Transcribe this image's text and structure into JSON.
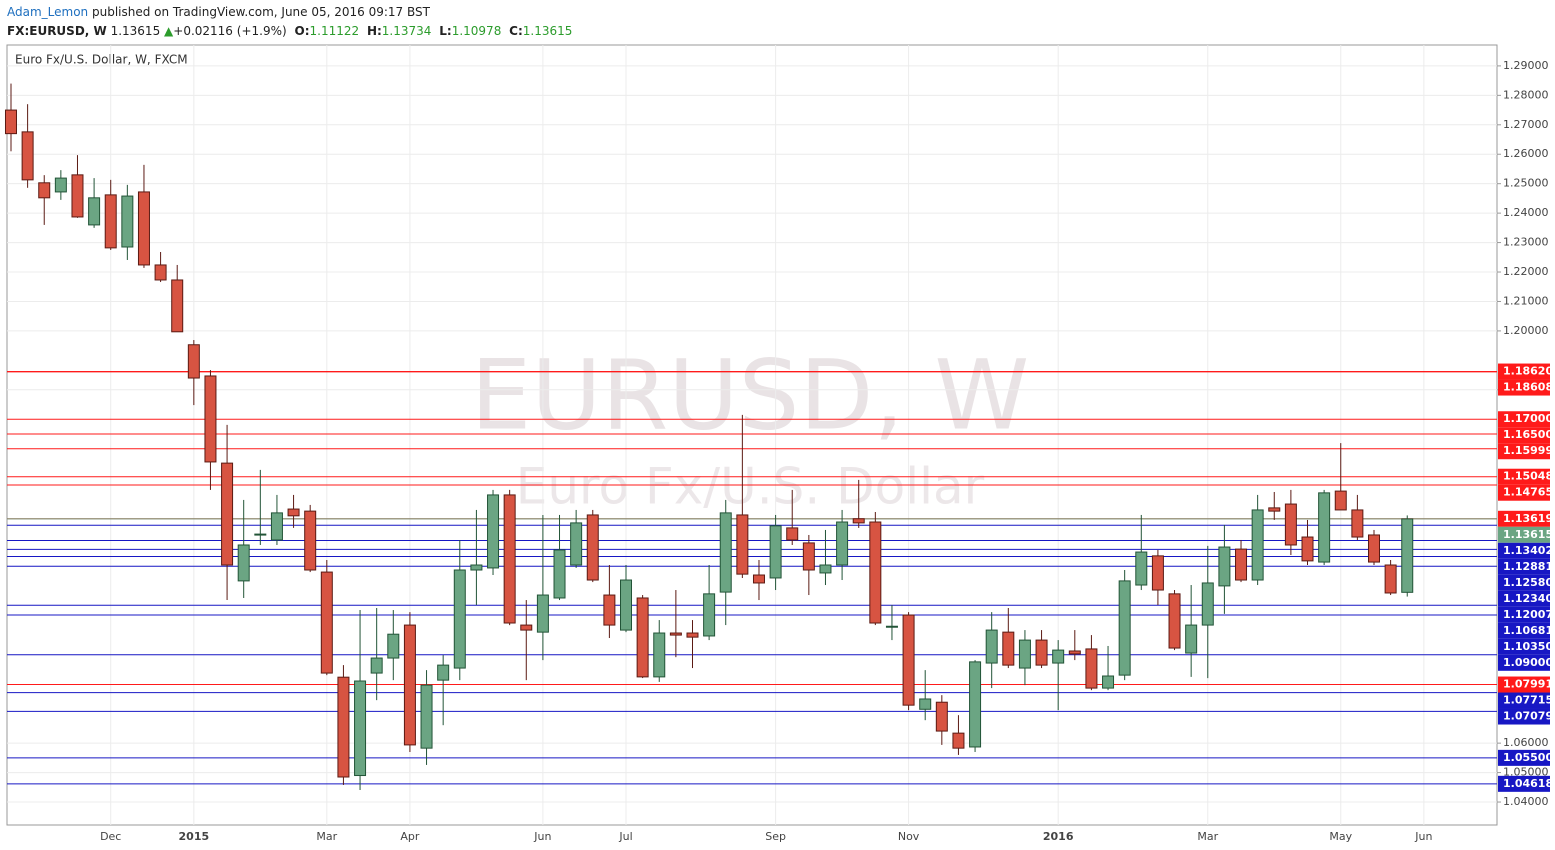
{
  "header": {
    "author": "Adam_Lemon",
    "published": "published on TradingView.com, June 05, 2016 09:17 BST",
    "symbol": "FX:EURUSD, W",
    "price": "1.13615",
    "arrow": "▲",
    "change": "+0.02116 (+1.9%)",
    "o_label": "O:",
    "o": "1.11122",
    "h_label": "H:",
    "h": "1.13734",
    "l_label": "L:",
    "l": "1.10978",
    "c_label": "C:",
    "c": "1.13615"
  },
  "chart_data": {
    "type": "candlestick",
    "title": "Euro Fx/U.S. Dollar, W, FXCM",
    "watermark": "EURUSD, W",
    "watermark_sub": "Euro Fx/U.S. Dollar",
    "up_color": "#6ba583",
    "down_color": "#d75442",
    "grid": true,
    "xlim": [
      -0.24,
      89.4
    ],
    "ylim": [
      1.0322,
      1.2971
    ],
    "xticks": [
      {
        "value": 6,
        "label": "Dec"
      },
      {
        "value": 11,
        "label": "2015"
      },
      {
        "value": 19,
        "label": "Mar"
      },
      {
        "value": 24,
        "label": "Apr"
      },
      {
        "value": 32,
        "label": "Jun"
      },
      {
        "value": 37,
        "label": "Jul"
      },
      {
        "value": 46,
        "label": "Sep"
      },
      {
        "value": 54,
        "label": "Nov"
      },
      {
        "value": 63,
        "label": "2016"
      },
      {
        "value": 72,
        "label": "Mar"
      },
      {
        "value": 80,
        "label": "May"
      },
      {
        "value": 85,
        "label": "Jun"
      }
    ],
    "yticks": [
      {
        "value": 1.29,
        "label": "1.29000"
      },
      {
        "value": 1.28,
        "label": "1.28000"
      },
      {
        "value": 1.27,
        "label": "1.27000"
      },
      {
        "value": 1.26,
        "label": "1.26000"
      },
      {
        "value": 1.25,
        "label": "1.25000"
      },
      {
        "value": 1.24,
        "label": "1.24000"
      },
      {
        "value": 1.23,
        "label": "1.23000"
      },
      {
        "value": 1.22,
        "label": "1.22000"
      },
      {
        "value": 1.21,
        "label": "1.21000"
      },
      {
        "value": 1.2,
        "label": "1.20000"
      },
      {
        "value": 1.18,
        "label": "1.18000"
      },
      {
        "value": 1.06,
        "label": "1.06000"
      },
      {
        "value": 1.05,
        "label": "1.05000"
      },
      {
        "value": 1.04,
        "label": "1.04000"
      }
    ],
    "open": [
      1.275,
      1.2676,
      1.2503,
      1.2472,
      1.253,
      1.236,
      1.2462,
      1.2285,
      1.2472,
      1.2224,
      1.2173,
      1.1953,
      1.1847,
      1.1551,
      1.1151,
      1.1307,
      1.129,
      1.1395,
      1.1388,
      1.1181,
      1.0824,
      1.049,
      1.0838,
      1.0889,
      1.1001,
      1.0583,
      1.0814,
      1.0855,
      1.1188,
      1.1195,
      1.1443,
      1.1001,
      1.0977,
      1.1093,
      1.1205,
      1.1375,
      1.1103,
      1.0984,
      1.1093,
      1.0825,
      1.0974,
      1.0974,
      1.0964,
      1.1113,
      1.1375,
      1.1171,
      1.1161,
      1.1331,
      1.128,
      1.1178,
      1.1205,
      1.1362,
      1.1351,
      1.0994,
      1.1035,
      1.0715,
      1.0739,
      1.0634,
      1.0587,
      1.0872,
      1.0977,
      1.0855,
      1.095,
      1.0872,
      1.0913,
      1.092,
      1.0787,
      1.0831,
      1.1137,
      1.1236,
      1.1107,
      1.0906,
      1.1001,
      1.1134,
      1.1259,
      1.1154,
      1.1399,
      1.1412,
      1.13,
      1.1215,
      1.1456,
      1.1392,
      1.1307,
      1.1205,
      1.11122
    ],
    "high": [
      1.284,
      1.277,
      1.2529,
      1.2546,
      1.2597,
      1.2519,
      1.2513,
      1.2496,
      1.2564,
      1.2268,
      1.2224,
      1.1969,
      1.1867,
      1.1681,
      1.1426,
      1.1528,
      1.1443,
      1.1443,
      1.1409,
      1.1222,
      1.0865,
      1.1052,
      1.1059,
      1.1052,
      1.1045,
      1.0848,
      1.0899,
      1.129,
      1.1392,
      1.146,
      1.146,
      1.1086,
      1.1375,
      1.1375,
      1.1392,
      1.1392,
      1.1205,
      1.1205,
      1.1103,
      1.1018,
      1.112,
      1.1018,
      1.1205,
      1.1426,
      1.1715,
      1.1222,
      1.1375,
      1.146,
      1.1307,
      1.1324,
      1.1392,
      1.1494,
      1.1385,
      1.1069,
      1.1045,
      1.0848,
      1.0763,
      1.0695,
      1.0882,
      1.1045,
      1.1059,
      1.0984,
      1.0984,
      1.095,
      1.0984,
      1.0967,
      1.093,
      1.1188,
      1.1375,
      1.1256,
      1.112,
      1.1137,
      1.127,
      1.1341,
      1.129,
      1.1443,
      1.1453,
      1.146,
      1.1358,
      1.146,
      1.1619,
      1.1443,
      1.1324,
      1.1222,
      1.13734
    ],
    "low": [
      1.261,
      1.2486,
      1.236,
      1.2445,
      1.2384,
      1.235,
      1.2275,
      1.2241,
      1.2214,
      1.2166,
      1.1997,
      1.1748,
      1.146,
      1.1086,
      1.1093,
      1.1273,
      1.1273,
      1.1331,
      1.1181,
      1.0831,
      1.0458,
      1.0441,
      1.0746,
      1.0814,
      1.057,
      1.0526,
      1.0661,
      1.0814,
      1.1069,
      1.1171,
      1.1001,
      1.0814,
      1.0882,
      1.1086,
      1.1195,
      1.1147,
      1.0957,
      1.0977,
      1.0821,
      1.0808,
      1.0892,
      1.0855,
      1.095,
      1.1001,
      1.1161,
      1.1086,
      1.112,
      1.1273,
      1.1103,
      1.1137,
      1.1154,
      1.1331,
      1.1001,
      1.095,
      1.0712,
      1.0678,
      1.0594,
      1.056,
      1.057,
      1.0787,
      1.0855,
      1.0797,
      1.0855,
      1.0712,
      1.0882,
      1.078,
      1.078,
      1.0814,
      1.112,
      1.1069,
      1.0916,
      1.0825,
      1.0821,
      1.1039,
      1.1147,
      1.1137,
      1.1358,
      1.1239,
      1.1205,
      1.1205,
      1.1392,
      1.129,
      1.1205,
      1.1103,
      1.10978
    ],
    "close": [
      1.267,
      1.2513,
      1.2452,
      1.2519,
      1.2387,
      1.2452,
      1.2282,
      1.2458,
      1.2224,
      1.2173,
      1.1997,
      1.184,
      1.1555,
      1.1205,
      1.1273,
      1.131,
      1.1382,
      1.1372,
      1.1188,
      1.0838,
      1.0485,
      1.0811,
      1.0889,
      1.097,
      1.0594,
      1.0797,
      1.0865,
      1.1188,
      1.1205,
      1.1443,
      1.1008,
      1.0984,
      1.1103,
      1.1256,
      1.1348,
      1.1154,
      1.1001,
      1.1154,
      1.0825,
      1.0974,
      1.0967,
      1.096,
      1.1107,
      1.1382,
      1.1174,
      1.1144,
      1.1338,
      1.129,
      1.1188,
      1.1205,
      1.1351,
      1.1348,
      1.1008,
      1.0997,
      1.0729,
      1.075,
      1.0641,
      1.0583,
      1.0876,
      1.0984,
      1.0865,
      1.095,
      1.0865,
      1.0916,
      1.0903,
      1.0787,
      1.0828,
      1.1151,
      1.1249,
      1.112,
      1.0923,
      1.1001,
      1.1144,
      1.1266,
      1.1154,
      1.1392,
      1.1388,
      1.1273,
      1.1219,
      1.145,
      1.1392,
      1.13,
      1.1215,
      1.111,
      1.13615
    ],
    "levels": [
      {
        "value": 1.1862,
        "label": "1.18620",
        "color": "#ff1a1a"
      },
      {
        "value": 1.18608,
        "label": "1.18608",
        "color": "#ff1a1a"
      },
      {
        "value": 1.17,
        "label": "1.17000",
        "color": "#ff1a1a"
      },
      {
        "value": 1.165,
        "label": "1.16500",
        "color": "#ff1a1a"
      },
      {
        "value": 1.15999,
        "label": "1.15999",
        "color": "#ff1a1a"
      },
      {
        "value": 1.15048,
        "label": "1.15048",
        "color": "#ff1a1a"
      },
      {
        "value": 1.14765,
        "label": "1.14765",
        "color": "#ff1a1a"
      },
      {
        "value": 1.13619,
        "label": "1.13619",
        "color": "#ff1a1a"
      },
      {
        "value": 1.13615,
        "label": "1.13615",
        "color": "#6ba583"
      },
      {
        "value": 1.13402,
        "label": "1.13402",
        "color": "#1717c4"
      },
      {
        "value": 1.12881,
        "label": "1.12881",
        "color": "#1717c4"
      },
      {
        "value": 1.1258,
        "label": "1.12580",
        "color": "#1717c4"
      },
      {
        "value": 1.1234,
        "label": "1.12340",
        "color": "#1717c4"
      },
      {
        "value": 1.12007,
        "label": "1.12007",
        "color": "#1717c4"
      },
      {
        "value": 1.10681,
        "label": "1.10681",
        "color": "#1717c4"
      },
      {
        "value": 1.1035,
        "label": "1.10350",
        "color": "#1717c4"
      },
      {
        "value": 1.09,
        "label": "1.09000",
        "color": "#1717c4"
      },
      {
        "value": 1.07991,
        "label": "1.07991",
        "color": "#ff1a1a"
      },
      {
        "value": 1.07715,
        "label": "1.07715",
        "color": "#1717c4"
      },
      {
        "value": 1.07079,
        "label": "1.07079",
        "color": "#1717c4"
      },
      {
        "value": 1.055,
        "label": "1.05500",
        "color": "#1717c4"
      },
      {
        "value": 1.04618,
        "label": "1.04618",
        "color": "#1717c4"
      }
    ]
  }
}
